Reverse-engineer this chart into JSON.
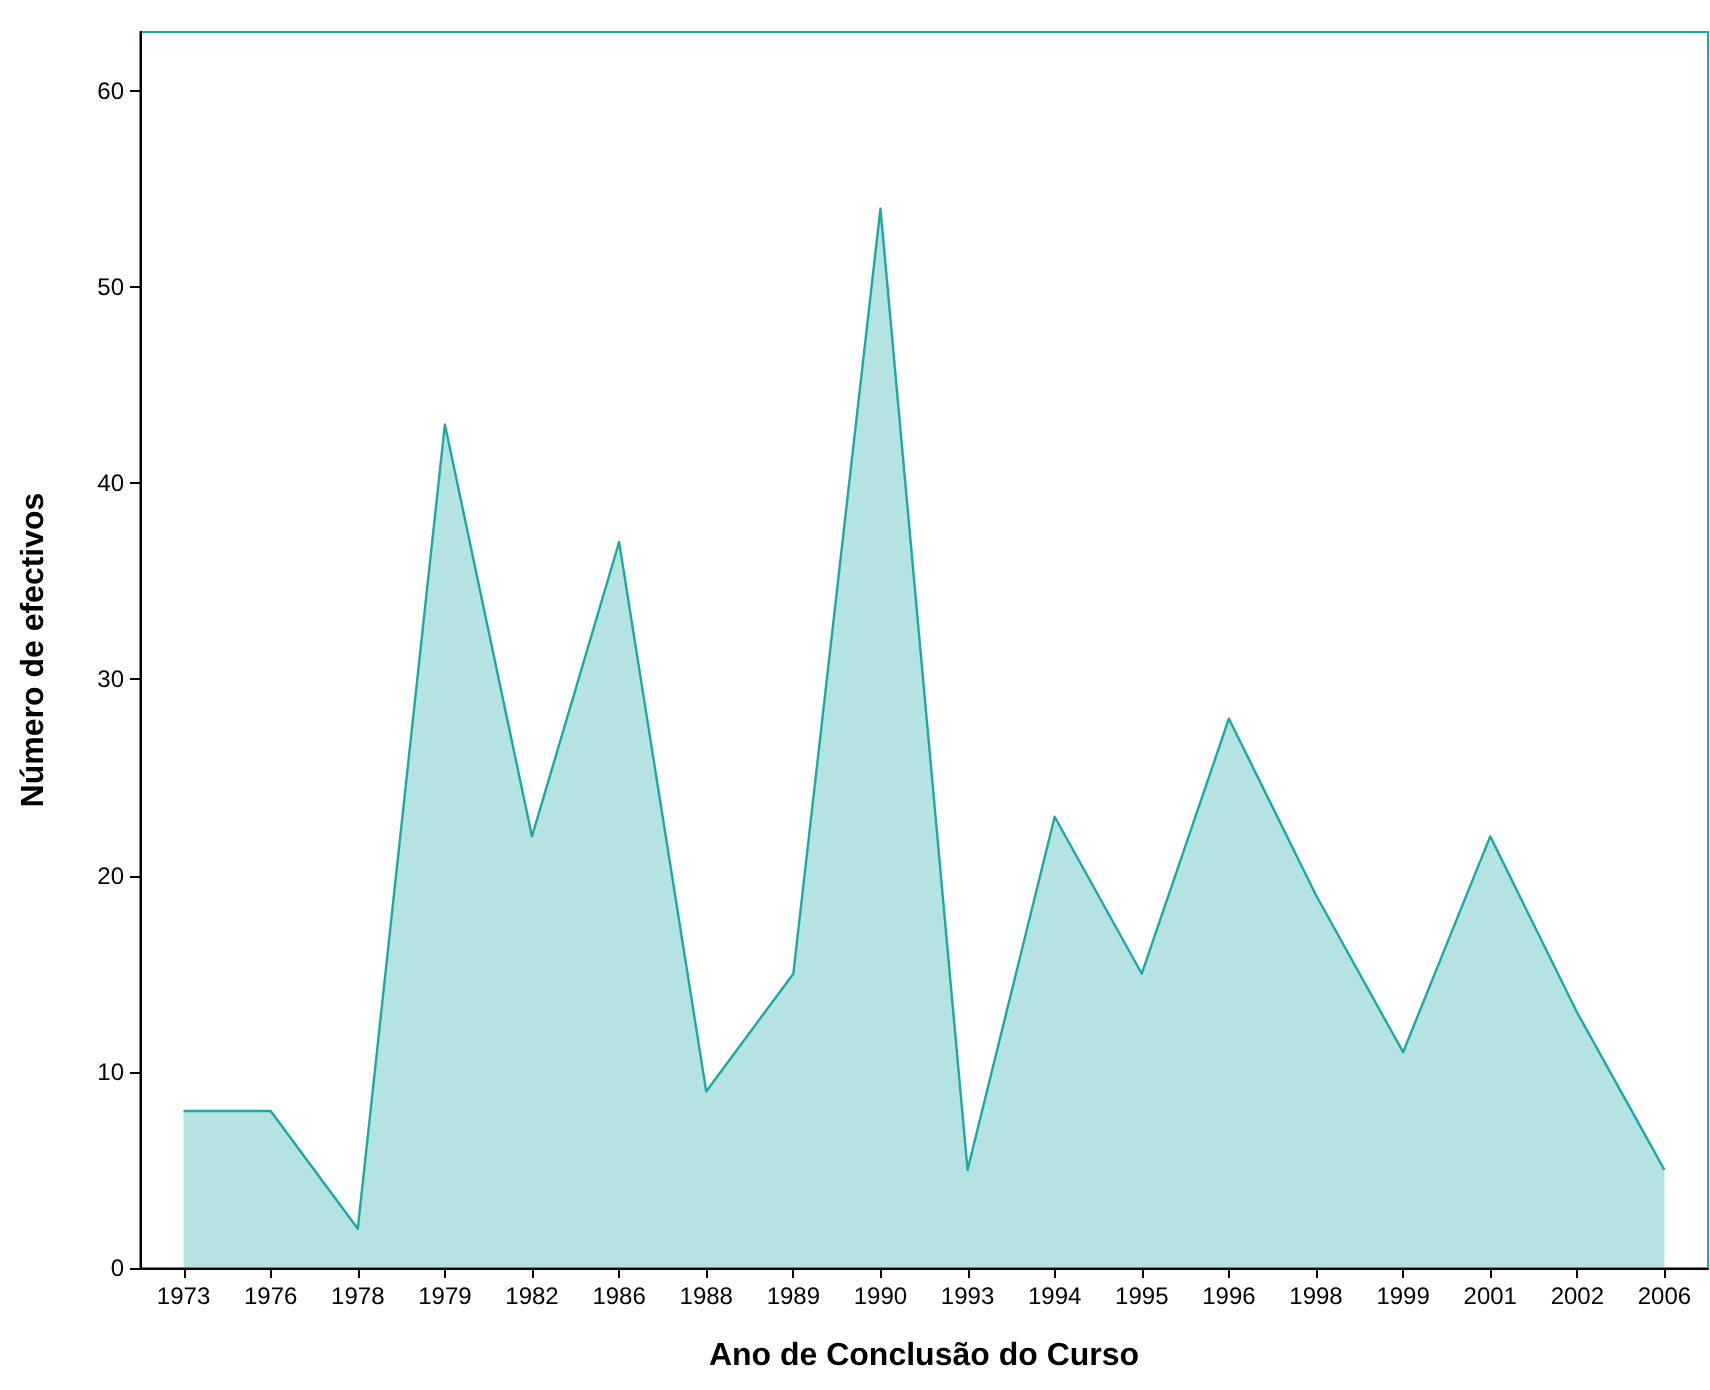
{
  "chart_data": {
    "type": "area",
    "xlabel": "Ano de Conclusão do Curso",
    "ylabel": "Número de efectivos",
    "categories": [
      "1973",
      "1976",
      "1978",
      "1979",
      "1982",
      "1986",
      "1988",
      "1989",
      "1990",
      "1993",
      "1994",
      "1995",
      "1996",
      "1998",
      "1999",
      "2001",
      "2002",
      "2006"
    ],
    "series": [
      {
        "color": "#1ba9a3",
        "values": [
          8,
          8,
          2,
          43,
          22,
          37,
          9,
          15,
          54,
          5,
          23,
          15,
          28,
          19,
          11,
          22,
          13,
          5
        ]
      }
    ],
    "ylim": [
      0,
      63
    ],
    "yticks": [
      0,
      10,
      20,
      30,
      40,
      50,
      60
    ],
    "grid": false,
    "legend": false,
    "marker": "none"
  }
}
